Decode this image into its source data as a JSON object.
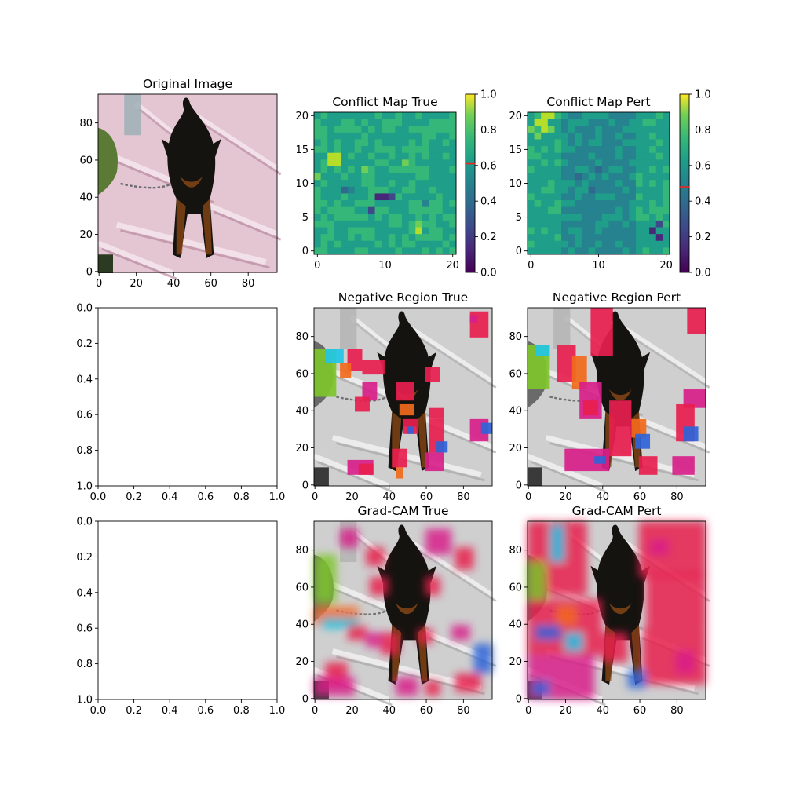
{
  "panels": [
    {
      "id": "original",
      "title": "Original Image",
      "kind": "image",
      "xticks": [
        "0",
        "20",
        "40",
        "60",
        "80"
      ],
      "yticks": [
        "0",
        "20",
        "40",
        "60",
        "80"
      ],
      "xlim": [
        -0.5,
        95.5
      ],
      "ylim": [
        95.5,
        -0.5
      ]
    },
    {
      "id": "conflict-true",
      "title": "Conflict Map True",
      "kind": "heatmap",
      "xticks": [
        "0",
        "10",
        "20"
      ],
      "yticks": [
        "0",
        "5",
        "10",
        "15",
        "20"
      ],
      "xlim": [
        -0.5,
        20.5
      ],
      "ylim": [
        20.5,
        -0.5
      ],
      "colorbar": {
        "ticks": [
          "0.0",
          "0.2",
          "0.4",
          "0.6",
          "0.8",
          "1.0"
        ],
        "range": [
          0,
          1
        ],
        "marker": 0.61
      }
    },
    {
      "id": "conflict-pert",
      "title": "Conflict Map Pert",
      "kind": "heatmap",
      "xticks": [
        "0",
        "10",
        "20"
      ],
      "yticks": [
        "0",
        "5",
        "10",
        "15",
        "20"
      ],
      "xlim": [
        -0.5,
        20.5
      ],
      "ylim": [
        20.5,
        -0.5
      ],
      "colorbar": {
        "ticks": [
          "0.0",
          "0.2",
          "0.4",
          "0.6",
          "0.8",
          "1.0"
        ],
        "range": [
          0,
          1
        ],
        "marker": 0.48
      }
    },
    {
      "id": "empty-1",
      "title": "",
      "kind": "empty",
      "xticks": [
        "0.0",
        "0.2",
        "0.4",
        "0.6",
        "0.8",
        "1.0"
      ],
      "yticks": [
        "0.0",
        "0.2",
        "0.4",
        "0.6",
        "0.8",
        "1.0"
      ],
      "xlim": [
        0,
        1
      ],
      "ylim": [
        0,
        1
      ]
    },
    {
      "id": "neg-true",
      "title": "Negative Region True",
      "kind": "overlay",
      "xticks": [
        "0",
        "20",
        "40",
        "60",
        "80"
      ],
      "yticks": [
        "0",
        "20",
        "40",
        "60",
        "80"
      ],
      "xlim": [
        -0.5,
        95.5
      ],
      "ylim": [
        95.5,
        -0.5
      ]
    },
    {
      "id": "neg-pert",
      "title": "Negative Region Pert",
      "kind": "overlay",
      "xticks": [
        "0",
        "20",
        "40",
        "60",
        "80"
      ],
      "yticks": [
        "0",
        "20",
        "40",
        "60",
        "80"
      ],
      "xlim": [
        -0.5,
        95.5
      ],
      "ylim": [
        95.5,
        -0.5
      ]
    },
    {
      "id": "empty-2",
      "title": "",
      "kind": "empty",
      "xticks": [
        "0.0",
        "0.2",
        "0.4",
        "0.6",
        "0.8",
        "1.0"
      ],
      "yticks": [
        "0.0",
        "0.2",
        "0.4",
        "0.6",
        "0.8",
        "1.0"
      ],
      "xlim": [
        0,
        1
      ],
      "ylim": [
        0,
        1
      ]
    },
    {
      "id": "gradcam-true",
      "title": "Grad-CAM True",
      "kind": "overlay",
      "xticks": [
        "0",
        "20",
        "40",
        "60",
        "80"
      ],
      "yticks": [
        "0",
        "20",
        "40",
        "60",
        "80"
      ],
      "xlim": [
        -0.5,
        95.5
      ],
      "ylim": [
        95.5,
        -0.5
      ]
    },
    {
      "id": "gradcam-pert",
      "title": "Grad-CAM Pert",
      "kind": "overlay",
      "xticks": [
        "0",
        "20",
        "40",
        "60",
        "80"
      ],
      "yticks": [
        "0",
        "20",
        "40",
        "60",
        "80"
      ],
      "xlim": [
        -0.5,
        95.5
      ],
      "ylim": [
        95.5,
        -0.5
      ]
    }
  ],
  "chart_data": {
    "type": "heatmap",
    "colormap": "viridis",
    "grid_size": [
      21,
      21
    ],
    "maps": [
      {
        "panel": "conflict-true",
        "base_value": 0.6,
        "cells": [
          [
            6,
            2,
            0.88
          ],
          [
            7,
            2,
            0.92
          ],
          [
            6,
            3,
            0.84
          ],
          [
            7,
            3,
            0.9
          ],
          [
            8,
            7,
            0.76
          ],
          [
            9,
            0,
            0.8
          ],
          [
            12,
            9,
            0.12
          ],
          [
            12,
            10,
            0.08
          ],
          [
            12,
            11,
            0.18
          ],
          [
            14,
            8,
            0.22
          ],
          [
            11,
            5,
            0.48
          ],
          [
            16,
            15,
            0.78
          ],
          [
            17,
            15,
            0.84
          ],
          [
            7,
            13,
            0.76
          ],
          [
            8,
            12,
            0.72
          ],
          [
            13,
            16,
            0.42
          ],
          [
            11,
            4,
            0.36
          ],
          [
            18,
            18,
            0.68
          ],
          [
            4,
            14,
            0.7
          ],
          [
            10,
            17,
            0.5
          ]
        ]
      },
      {
        "panel": "conflict-pert",
        "base_value": 0.5,
        "cells": [
          [
            0,
            2,
            0.92
          ],
          [
            0,
            3,
            0.9
          ],
          [
            1,
            1,
            0.86
          ],
          [
            1,
            2,
            0.88
          ],
          [
            2,
            0,
            0.8
          ],
          [
            2,
            2,
            0.84
          ],
          [
            2,
            3,
            0.82
          ],
          [
            3,
            1,
            0.76
          ],
          [
            17,
            18,
            0.1
          ],
          [
            18,
            19,
            0.14
          ],
          [
            16,
            19,
            0.26
          ],
          [
            9,
            7,
            0.36
          ],
          [
            8,
            10,
            0.38
          ],
          [
            11,
            9,
            0.34
          ],
          [
            5,
            18,
            0.66
          ],
          [
            6,
            19,
            0.7
          ],
          [
            14,
            19,
            0.68
          ]
        ]
      }
    ]
  },
  "colors": {
    "dog": "#15130f",
    "dog_tan": "#8c4a16",
    "blanket": "#e4c6d2",
    "grass": "#5b7a35",
    "overlay_red": "#e81e4e",
    "overlay_magenta": "#d8208a",
    "overlay_orange": "#f26a1c",
    "overlay_blue": "#2f64d8",
    "overlay_cyan": "#22c6e6",
    "overlay_green": "#7ec62a",
    "marker_red": "#e8261e"
  }
}
